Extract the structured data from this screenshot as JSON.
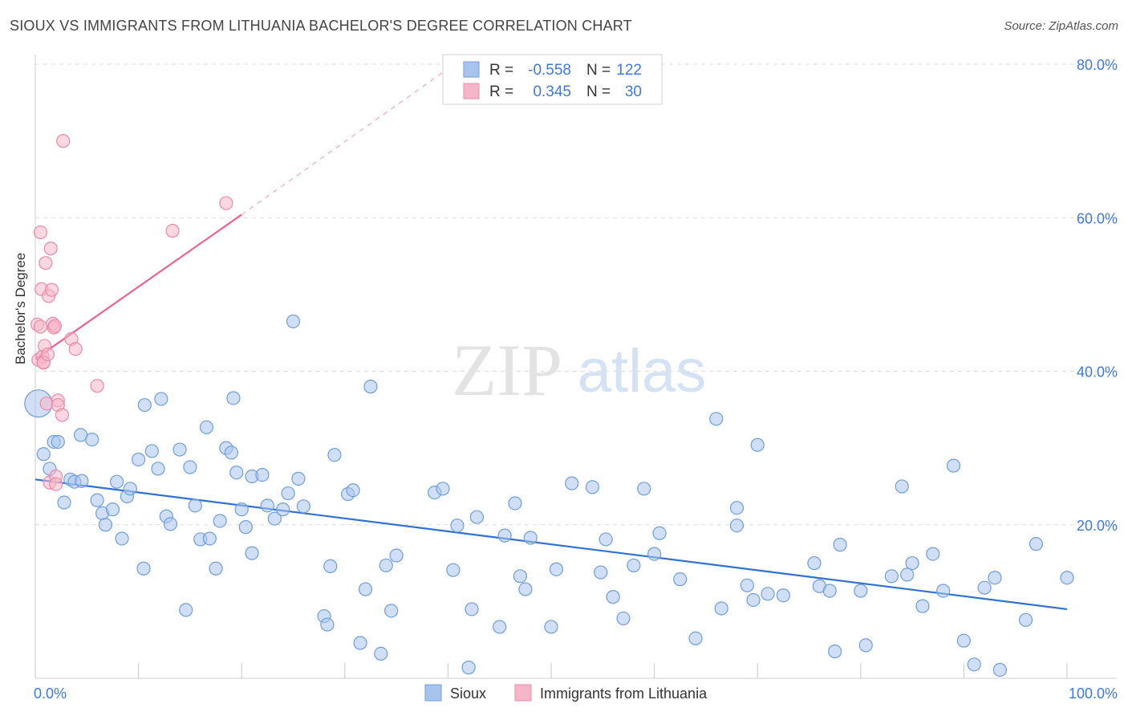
{
  "title": "SIOUX VS IMMIGRANTS FROM LITHUANIA BACHELOR'S DEGREE CORRELATION CHART",
  "source": "Source: ZipAtlas.com",
  "watermark": {
    "zip": "ZIP",
    "atlas": "atlas"
  },
  "colors": {
    "sioux_fill": "#a9c4ec",
    "sioux_stroke": "#6f9edc",
    "sioux_line": "#2f72d0",
    "lith_fill": "#f5b6c9",
    "lith_stroke": "#eb8aab",
    "lith_line": "#e8648e",
    "axis_text": "#3f7ad6",
    "grid": "#dcdcdc"
  },
  "legend": {
    "rows": [
      {
        "r_label": "R =",
        "r_value": "-0.558",
        "n_label": "N =",
        "n_value": "122",
        "series": "sioux"
      },
      {
        "r_label": "R =",
        "r_value": "0.345",
        "n_label": "N =",
        "n_value": "30",
        "series": "lith"
      }
    ]
  },
  "bottom_legend": [
    {
      "label": "Sioux",
      "series": "sioux"
    },
    {
      "label": "Immigrants from Lithuania",
      "series": "lith"
    }
  ],
  "chart_data": {
    "type": "scatter",
    "title": "SIOUX VS IMMIGRANTS FROM LITHUANIA BACHELOR'S DEGREE CORRELATION CHART",
    "xlabel": "",
    "ylabel": "Bachelor's Degree",
    "xlim": [
      0,
      100
    ],
    "ylim": [
      0,
      80
    ],
    "x_tick_labels": [
      "0.0%",
      "100.0%"
    ],
    "y_tick_values": [
      20,
      40,
      60,
      80
    ],
    "y_tick_labels": [
      "20.0%",
      "40.0%",
      "60.0%",
      "80.0%"
    ],
    "grid": true,
    "legend_position": "top-center",
    "series": [
      {
        "name": "Sioux",
        "key": "sioux",
        "r": -0.558,
        "n": 122,
        "trend": {
          "x": [
            0,
            100
          ],
          "y": [
            25.9,
            9.0
          ]
        },
        "points": [
          [
            0.3,
            35.8
          ],
          [
            0.8,
            29.2
          ],
          [
            1.4,
            27.3
          ],
          [
            1.8,
            30.8
          ],
          [
            2.2,
            30.8
          ],
          [
            2.8,
            22.9
          ],
          [
            3.4,
            25.9
          ],
          [
            3.8,
            25.6
          ],
          [
            4.5,
            25.7
          ],
          [
            4.4,
            31.7
          ],
          [
            5.5,
            31.1
          ],
          [
            6.0,
            23.2
          ],
          [
            6.5,
            21.5
          ],
          [
            6.8,
            20.0
          ],
          [
            7.5,
            22.0
          ],
          [
            7.9,
            25.6
          ],
          [
            8.4,
            18.2
          ],
          [
            8.9,
            23.7
          ],
          [
            9.2,
            24.7
          ],
          [
            10.0,
            28.5
          ],
          [
            10.5,
            14.3
          ],
          [
            10.6,
            35.6
          ],
          [
            11.3,
            29.6
          ],
          [
            11.9,
            27.3
          ],
          [
            12.2,
            36.4
          ],
          [
            12.7,
            21.1
          ],
          [
            13.1,
            20.1
          ],
          [
            14.0,
            29.8
          ],
          [
            14.6,
            8.9
          ],
          [
            15.0,
            27.5
          ],
          [
            15.5,
            22.5
          ],
          [
            16.0,
            18.1
          ],
          [
            16.6,
            32.7
          ],
          [
            16.9,
            18.2
          ],
          [
            17.5,
            14.3
          ],
          [
            17.9,
            20.5
          ],
          [
            18.5,
            30.0
          ],
          [
            19.0,
            29.4
          ],
          [
            19.2,
            36.5
          ],
          [
            19.5,
            26.8
          ],
          [
            20.0,
            22.0
          ],
          [
            20.4,
            19.7
          ],
          [
            21.0,
            16.3
          ],
          [
            21.0,
            26.3
          ],
          [
            22.0,
            26.5
          ],
          [
            22.5,
            22.5
          ],
          [
            23.2,
            20.8
          ],
          [
            24.0,
            22.0
          ],
          [
            24.5,
            24.1
          ],
          [
            25.0,
            46.5
          ],
          [
            25.5,
            26.0
          ],
          [
            26.0,
            22.4
          ],
          [
            28.0,
            8.1
          ],
          [
            28.3,
            7.0
          ],
          [
            28.6,
            14.6
          ],
          [
            29.0,
            29.1
          ],
          [
            30.3,
            24.0
          ],
          [
            30.8,
            24.5
          ],
          [
            31.5,
            4.6
          ],
          [
            32.0,
            11.6
          ],
          [
            32.5,
            38.0
          ],
          [
            33.5,
            3.2
          ],
          [
            34.0,
            14.7
          ],
          [
            34.5,
            8.8
          ],
          [
            35.0,
            16.0
          ],
          [
            38.7,
            24.2
          ],
          [
            39.5,
            24.7
          ],
          [
            40.5,
            14.1
          ],
          [
            40.9,
            19.9
          ],
          [
            42.0,
            1.4
          ],
          [
            42.3,
            9.0
          ],
          [
            42.8,
            21.0
          ],
          [
            45.0,
            6.7
          ],
          [
            45.5,
            18.6
          ],
          [
            46.5,
            22.8
          ],
          [
            47.0,
            13.3
          ],
          [
            47.5,
            11.6
          ],
          [
            48.0,
            18.3
          ],
          [
            50.0,
            6.7
          ],
          [
            50.5,
            14.2
          ],
          [
            52.0,
            25.4
          ],
          [
            54.0,
            24.9
          ],
          [
            54.8,
            13.8
          ],
          [
            55.3,
            18.1
          ],
          [
            56.0,
            10.6
          ],
          [
            57.0,
            7.8
          ],
          [
            58.0,
            14.7
          ],
          [
            59.0,
            24.7
          ],
          [
            60.0,
            16.2
          ],
          [
            60.5,
            18.9
          ],
          [
            62.5,
            12.9
          ],
          [
            64.0,
            5.2
          ],
          [
            66.0,
            33.8
          ],
          [
            66.5,
            9.1
          ],
          [
            68.0,
            22.2
          ],
          [
            68.0,
            19.9
          ],
          [
            69.0,
            12.1
          ],
          [
            69.6,
            10.2
          ],
          [
            70.0,
            30.4
          ],
          [
            71.0,
            11.0
          ],
          [
            72.5,
            10.8
          ],
          [
            75.5,
            15.0
          ],
          [
            76.0,
            12.0
          ],
          [
            77.0,
            11.4
          ],
          [
            77.5,
            3.5
          ],
          [
            78.0,
            17.4
          ],
          [
            80.0,
            11.4
          ],
          [
            80.5,
            4.3
          ],
          [
            83.0,
            13.3
          ],
          [
            84.0,
            25.0
          ],
          [
            84.5,
            13.5
          ],
          [
            85.0,
            15.0
          ],
          [
            86.0,
            9.4
          ],
          [
            87.0,
            16.2
          ],
          [
            88.0,
            11.4
          ],
          [
            89.0,
            27.7
          ],
          [
            90.0,
            4.9
          ],
          [
            91.0,
            1.8
          ],
          [
            92.0,
            11.8
          ],
          [
            93.0,
            13.1
          ],
          [
            93.5,
            1.1
          ],
          [
            96.0,
            7.6
          ],
          [
            97.0,
            17.5
          ],
          [
            100.0,
            13.1
          ]
        ]
      },
      {
        "name": "Immigrants from Lithuania",
        "key": "lith",
        "r": 0.345,
        "n": 30,
        "trend": {
          "x": [
            0,
            20
          ],
          "y": [
            41.6,
            60.4
          ],
          "dashed_to": {
            "x": [
              20,
              40
            ],
            "y": [
              60.4,
              79.4
            ]
          }
        },
        "points": [
          [
            0.2,
            46.1
          ],
          [
            0.3,
            41.5
          ],
          [
            0.5,
            58.1
          ],
          [
            0.5,
            45.8
          ],
          [
            0.6,
            50.7
          ],
          [
            0.7,
            41.9
          ],
          [
            0.8,
            41.2
          ],
          [
            0.8,
            41.1
          ],
          [
            0.9,
            43.3
          ],
          [
            1.0,
            54.1
          ],
          [
            1.1,
            35.8
          ],
          [
            1.2,
            42.2
          ],
          [
            1.3,
            49.8
          ],
          [
            1.4,
            25.5
          ],
          [
            1.5,
            56.0
          ],
          [
            1.6,
            50.6
          ],
          [
            1.7,
            46.2
          ],
          [
            1.8,
            45.7
          ],
          [
            1.9,
            45.9
          ],
          [
            2.0,
            26.3
          ],
          [
            2.0,
            25.3
          ],
          [
            2.2,
            36.2
          ],
          [
            2.2,
            35.6
          ],
          [
            2.6,
            34.3
          ],
          [
            2.7,
            70.0
          ],
          [
            3.5,
            44.2
          ],
          [
            3.9,
            42.9
          ],
          [
            6.0,
            38.1
          ],
          [
            13.3,
            58.3
          ],
          [
            18.5,
            61.9
          ]
        ]
      }
    ]
  }
}
